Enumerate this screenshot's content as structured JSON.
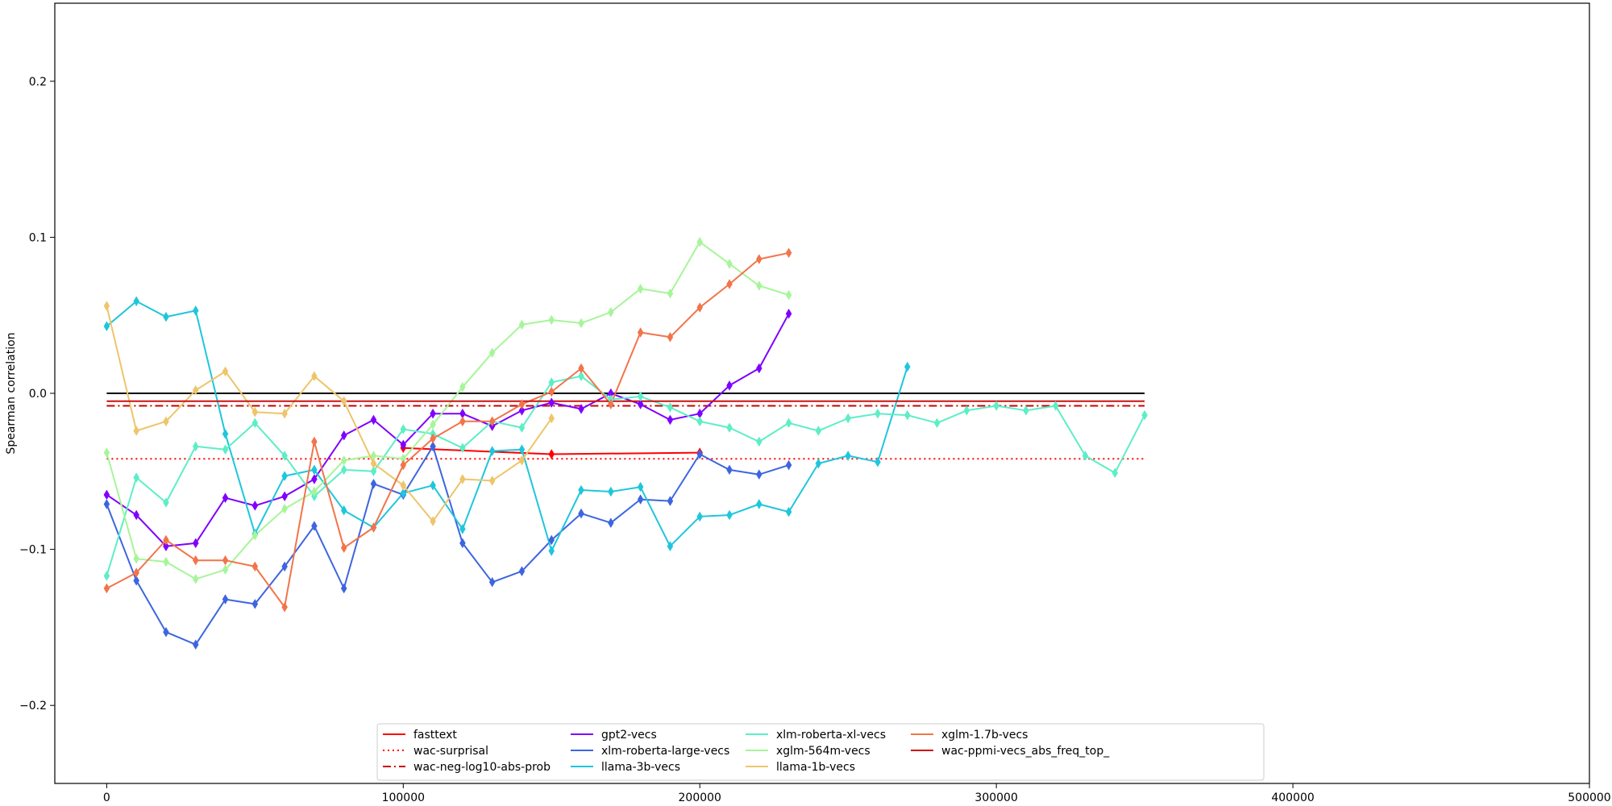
{
  "chart_data": {
    "type": "line",
    "ylabel": "Spearman correlation",
    "xlabel": "",
    "xlim": [
      -17500,
      500000
    ],
    "ylim": [
      -0.25,
      0.25
    ],
    "xticks": [
      0,
      100000,
      200000,
      300000,
      400000,
      500000
    ],
    "xtick_labels": [
      "0",
      "100000",
      "200000",
      "300000",
      "400000",
      "500000"
    ],
    "yticks": [
      -0.2,
      -0.1,
      0.0,
      0.1,
      0.2
    ],
    "ytick_labels": [
      "−0.2",
      "−0.1",
      "0.0",
      "0.1",
      "0.2"
    ],
    "grid": false,
    "legend_position": "lower-center",
    "series": [
      {
        "name": "fasttext",
        "color": "#ff0000",
        "dash": "solid",
        "marker": true,
        "x": [
          100000,
          150000,
          200000
        ],
        "y": [
          -0.035,
          -0.039,
          -0.038
        ]
      },
      {
        "name": "wac-surprisal",
        "color": "#ff0000",
        "dash": "dotted",
        "marker": false,
        "x": [
          0,
          350000
        ],
        "y": [
          -0.042,
          -0.042
        ]
      },
      {
        "name": "wac-neg-log10-abs-prob",
        "color": "#cc0000",
        "dash": "dashdot",
        "marker": false,
        "x": [
          0,
          350000
        ],
        "y": [
          -0.008,
          -0.008
        ]
      },
      {
        "name": "gpt2-vecs",
        "color": "#7f00ff",
        "dash": "solid",
        "marker": true,
        "x": [
          0,
          10000,
          20000,
          30000,
          40000,
          50000,
          60000,
          70000,
          80000,
          90000,
          100000,
          110000,
          120000,
          130000,
          140000,
          150000,
          160000,
          170000,
          180000,
          190000,
          200000,
          210000,
          220000,
          230000
        ],
        "y": [
          -0.065,
          -0.078,
          -0.098,
          -0.096,
          -0.067,
          -0.072,
          -0.066,
          -0.055,
          -0.027,
          -0.017,
          -0.033,
          -0.013,
          -0.013,
          -0.021,
          -0.011,
          -0.006,
          -0.01,
          0.0,
          -0.007,
          -0.017,
          -0.013,
          0.005,
          0.016,
          0.051
        ]
      },
      {
        "name": "xlm-roberta-large-vecs",
        "color": "#3d65e0",
        "dash": "solid",
        "marker": true,
        "x": [
          0,
          10000,
          20000,
          30000,
          40000,
          50000,
          60000,
          70000,
          80000,
          90000,
          100000,
          110000,
          120000,
          130000,
          140000,
          150000,
          160000,
          170000,
          180000,
          190000,
          200000,
          210000,
          220000,
          230000
        ],
        "y": [
          -0.071,
          -0.12,
          -0.153,
          -0.161,
          -0.132,
          -0.135,
          -0.111,
          -0.085,
          -0.125,
          -0.058,
          -0.065,
          -0.034,
          -0.096,
          -0.121,
          -0.114,
          -0.094,
          -0.077,
          -0.083,
          -0.068,
          -0.069,
          -0.039,
          -0.049,
          -0.052,
          -0.046
        ]
      },
      {
        "name": "llama-3b-vecs",
        "color": "#1fc6dc",
        "dash": "solid",
        "marker": true,
        "x": [
          0,
          10000,
          20000,
          30000,
          40000,
          50000,
          60000,
          70000,
          80000,
          90000,
          100000,
          110000,
          120000,
          130000,
          140000,
          150000,
          160000,
          170000,
          180000,
          190000,
          200000,
          210000,
          220000,
          230000,
          240000,
          250000,
          260000,
          270000
        ],
        "y": [
          0.043,
          0.059,
          0.049,
          0.053,
          -0.026,
          -0.09,
          -0.053,
          -0.049,
          -0.075,
          -0.086,
          -0.064,
          -0.059,
          -0.087,
          -0.037,
          -0.036,
          -0.101,
          -0.062,
          -0.063,
          -0.06,
          -0.098,
          -0.079,
          -0.078,
          -0.071,
          -0.076,
          -0.045,
          -0.04,
          -0.044,
          0.017
        ]
      },
      {
        "name": "xlm-roberta-xl-vecs",
        "color": "#5deec6",
        "dash": "solid",
        "marker": true,
        "x": [
          0,
          10000,
          20000,
          30000,
          40000,
          50000,
          60000,
          70000,
          80000,
          90000,
          100000,
          110000,
          120000,
          130000,
          140000,
          150000,
          160000,
          170000,
          180000,
          190000,
          200000,
          210000,
          220000,
          230000,
          240000,
          250000,
          260000,
          270000,
          280000,
          290000,
          300000,
          310000,
          320000,
          330000,
          340000,
          350000
        ],
        "y": [
          -0.117,
          -0.054,
          -0.07,
          -0.034,
          -0.036,
          -0.019,
          -0.04,
          -0.066,
          -0.049,
          -0.05,
          -0.023,
          -0.026,
          -0.035,
          -0.018,
          -0.022,
          0.007,
          0.011,
          -0.004,
          -0.002,
          -0.009,
          -0.018,
          -0.022,
          -0.031,
          -0.019,
          -0.024,
          -0.016,
          -0.013,
          -0.014,
          -0.019,
          -0.011,
          -0.008,
          -0.011,
          -0.008,
          -0.04,
          -0.051,
          -0.014
        ]
      },
      {
        "name": "xglm-564m-vecs",
        "color": "#a7f59a",
        "dash": "solid",
        "marker": true,
        "x": [
          0,
          10000,
          20000,
          30000,
          40000,
          50000,
          60000,
          70000,
          80000,
          90000,
          100000,
          110000,
          120000,
          130000,
          140000,
          150000,
          160000,
          170000,
          180000,
          190000,
          200000,
          210000,
          220000,
          230000
        ],
        "y": [
          -0.038,
          -0.106,
          -0.108,
          -0.119,
          -0.113,
          -0.091,
          -0.074,
          -0.063,
          -0.043,
          -0.04,
          -0.042,
          -0.02,
          0.004,
          0.026,
          0.044,
          0.047,
          0.045,
          0.052,
          0.067,
          0.064,
          0.097,
          0.083,
          0.069,
          0.063
        ]
      },
      {
        "name": "llama-1b-vecs",
        "color": "#eec56b",
        "dash": "solid",
        "marker": true,
        "x": [
          0,
          10000,
          20000,
          30000,
          40000,
          50000,
          60000,
          70000,
          80000,
          90000,
          100000,
          110000,
          120000,
          130000,
          140000,
          150000
        ],
        "y": [
          0.056,
          -0.024,
          -0.018,
          0.002,
          0.014,
          -0.012,
          -0.013,
          0.011,
          -0.005,
          -0.045,
          -0.059,
          -0.082,
          -0.055,
          -0.056,
          -0.043,
          -0.016
        ]
      },
      {
        "name": "xglm-1.7b-vecs",
        "color": "#f2744a",
        "dash": "solid",
        "marker": true,
        "x": [
          0,
          10000,
          20000,
          30000,
          40000,
          50000,
          60000,
          70000,
          80000,
          90000,
          100000,
          110000,
          120000,
          130000,
          140000,
          150000,
          160000,
          170000,
          180000,
          190000,
          200000,
          210000,
          220000,
          230000
        ],
        "y": [
          -0.125,
          -0.115,
          -0.094,
          -0.107,
          -0.107,
          -0.111,
          -0.137,
          -0.031,
          -0.099,
          -0.086,
          -0.046,
          -0.029,
          -0.018,
          -0.018,
          -0.007,
          0.001,
          0.016,
          -0.007,
          0.039,
          0.036,
          0.055,
          0.07,
          0.086,
          0.09
        ]
      },
      {
        "name": "wac-ppmi-vecs_abs_freq_top_",
        "color": "#cc1010",
        "dash": "solid",
        "marker": false,
        "x": [
          0,
          350000
        ],
        "y": [
          -0.005,
          -0.005
        ]
      }
    ],
    "reference_line": {
      "y": 0.0,
      "x": [
        0,
        350000
      ],
      "color": "#000000"
    }
  }
}
